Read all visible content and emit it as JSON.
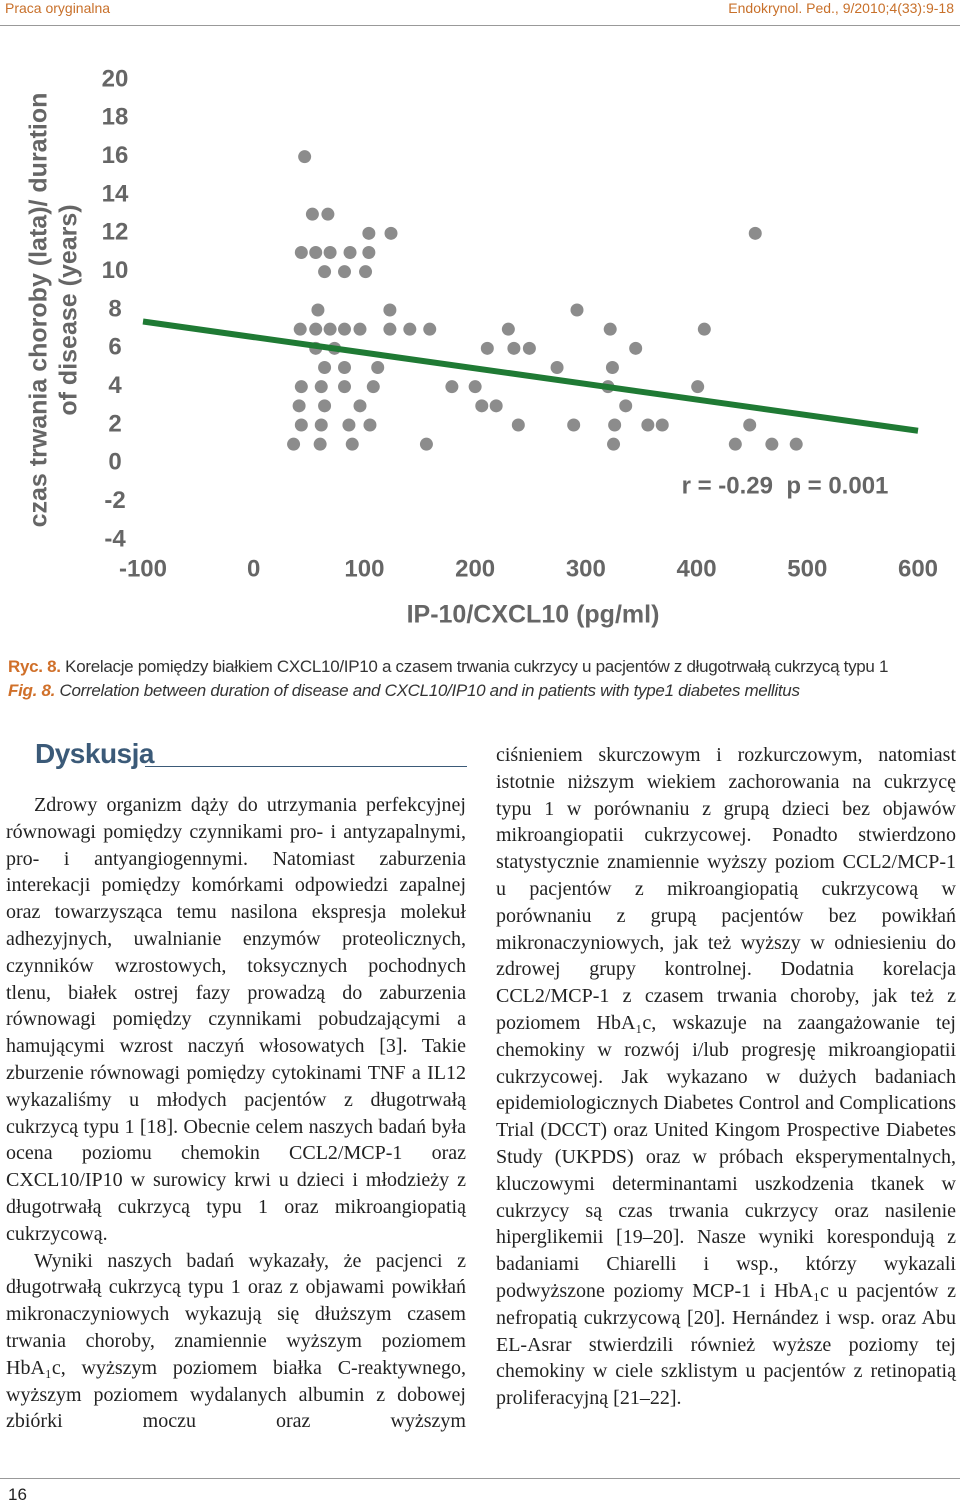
{
  "header": {
    "left": "Praca oryginalna",
    "right": "Endokrynol. Ped., 9/2010;4(33):9-18"
  },
  "chart_data": {
    "type": "scatter",
    "ylabel": [
      "czas trwania choroby (lata)/ duration",
      "of disease (years)"
    ],
    "xlabel": "IP-10/CXCL10 (pg/ml)",
    "annotation": "r = -0.29  p = 0.001",
    "color": "#8c8c8c",
    "x": [
      46,
      53,
      67,
      104,
      124,
      453,
      43,
      56,
      69,
      87,
      104,
      64,
      82,
      101,
      58,
      123,
      292,
      42,
      56,
      69,
      82,
      96,
      123,
      141,
      159,
      230,
      322,
      407,
      56,
      73,
      211,
      235,
      249,
      345,
      64,
      82,
      112,
      274,
      324,
      43,
      61,
      82,
      108,
      179,
      200,
      320,
      401,
      41,
      64,
      96,
      206,
      219,
      336,
      43,
      61,
      86,
      105,
      239,
      289,
      326,
      356,
      369,
      448,
      36,
      60,
      89,
      156,
      325,
      435,
      468,
      490
    ],
    "values": [
      16,
      13,
      13,
      12,
      12,
      12,
      11,
      11,
      11,
      11,
      11,
      10,
      10,
      10,
      8,
      8,
      8,
      7,
      7,
      7,
      7,
      7,
      7,
      7,
      7,
      7,
      7,
      7,
      6,
      6,
      6,
      6,
      6,
      6,
      5,
      5,
      5,
      5,
      5,
      4,
      4,
      4,
      4,
      4,
      4,
      4,
      4,
      3,
      3,
      3,
      3,
      3,
      3,
      2,
      2,
      2,
      2,
      2,
      2,
      2,
      2,
      2,
      2,
      1,
      1,
      1,
      1,
      1,
      1,
      1,
      1
    ],
    "trendline": {
      "x": [
        -100,
        600
      ],
      "y": [
        7.4,
        1.7
      ],
      "color": "#1f7a34"
    },
    "xlim": [
      -100,
      600
    ],
    "xticks": [
      -100,
      0,
      100,
      200,
      300,
      400,
      500,
      600
    ],
    "ylim": [
      -4,
      20
    ],
    "yticks": [
      -4,
      -2,
      0,
      2,
      4,
      6,
      8,
      10,
      12,
      14,
      16,
      18,
      20
    ]
  },
  "caption_pl": {
    "label": "Ryc. 8.",
    "text": "Korelacje pomiędzy białkiem CXCL10/IP10 a czasem trwania cukrzycy u pacjentów z długotrwałą cukrzycą typu 1"
  },
  "caption_en": {
    "label": "Fig. 8.",
    "text": "Correlation between duration of disease and CXCL10/IP10 and in patients with type1 diabetes mellitus"
  },
  "section": {
    "heading": "Dyskusja",
    "left": [
      "Zdrowy organizm dąży do utrzymania perfekcyjnej równowagi pomiędzy czynnikami pro- i antyzapalnymi, pro- i antyangiogennymi. Natomiast zaburzenia interekacji pomiędzy komórkami odpowiedzi zapalnej oraz towarzysząca temu nasilona ekspresja molekuł adhezyjnych, uwalnianie enzymów proteolicznych, czynników wzrostowych, toksycznych pochodnych tlenu, białek ostrej fazy prowadzą do zaburzenia równowagi pomiędzy czynnikami pobudzającymi a hamującymi wzrost naczyń włosowatych [3]. Takie zburzenie równowagi pomiędzy cytokinami TNF a IL12 wykazaliśmy u młodych pacjentów z długotrwałą cukrzycą typu 1 [18]. Obecnie celem naszych badań była ocena poziomu chemokin CCL2/MCP-1 oraz CXCL10/IP10 w surowicy krwi u dzieci i młodzieży z długotrwałą cukrzycą typu 1 oraz mikroangiopatią cukrzycową.",
      "Wyniki naszych badań wykazały, że pacjenci z długotrwałą cukrzycą typu 1 oraz z objawami powikłań mikronaczyniowych wykazują się dłuższym czasem trwania choroby, znamiennie wyższym poziomem HbA₁c, wyższym poziomem białka C-reaktywnego, wyższym poziomem wydalanych albumin z dobowej zbiórki moczu oraz wyższym"
    ],
    "right": "ciśnieniem skurczowym i rozkurczowym, natomiast istotnie niższym wiekiem zachorowania na cukrzycę typu 1 w porównaniu z grupą dzieci bez objawów mikroangiopatii cukrzycowej. Ponadto stwierdzono statystycznie znamiennie wyższy poziom CCL2/MCP-1 u pacjentów z mikroangiopatią cukrzycową w porównaniu z grupą pacjentów bez powikłań mikronaczyniowych, jak też wyższy w odniesieniu do zdrowej grupy kontrolnej. Dodatnia korelacja CCL2/MCP-1 z czasem trwania choroby, jak też z poziomem HbA₁c, wskazuje na zaangażowanie tej chemokiny w rozwój i/lub progresję mikroangiopatii cukrzycowej. Jak wykazano w dużych badaniach epidemiologicznych Diabetes Control and Complications Trial (DCCT) oraz United Kingom Prospective Diabetes Study (UKPDS) oraz w próbach eksperymentalnych, kluczowymi determinantami uszkodzenia tkanek w cukrzycy są czas trwania cukrzycy oraz nasilenie hiperglikemii [19–20]. Nasze wyniki korespondują z badaniami Chiarelli i wsp., którzy wykazali podwyższone poziomy MCP-1 i HbA₁c u pacjentów z nefropatią cukrzycową [20]. Hernández i wsp. oraz Abu EL-Asrar stwierdzili również wyższe poziomy tej chemokiny w ciele szklistym u pacjentów z retinopatią proliferacyjną [21–22]."
  },
  "footer": {
    "page": "16"
  }
}
